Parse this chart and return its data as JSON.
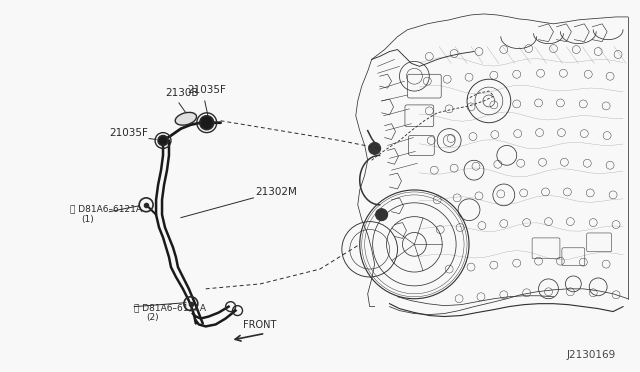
{
  "bg_color": "#f8f8f8",
  "line_color": "#2a2a2a",
  "label_color": "#2a2a2a",
  "fig_width": 6.4,
  "fig_height": 3.72,
  "dpi": 100,
  "watermark": "J2130169",
  "label_2130B": "2130B",
  "label_21035F": "21035F",
  "label_21302M": "21302M",
  "label_bolt1": "B D81A6-6121A\n（1）",
  "label_bolt2": "B D81A6-6121A\n（2）",
  "label_front": "FRONT",
  "pipe_color": "#1a1a1a",
  "engine_color": "#333333"
}
